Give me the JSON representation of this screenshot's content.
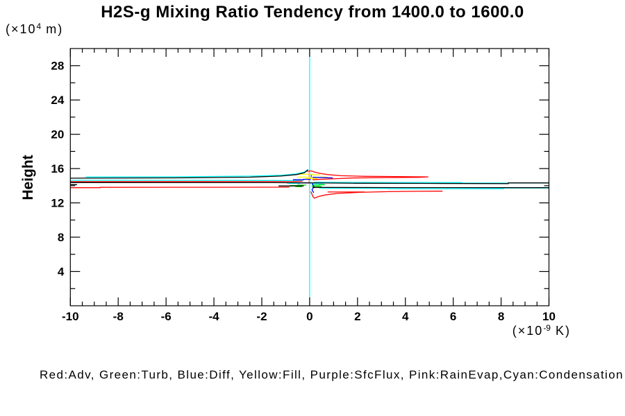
{
  "title": "H2S-g Mixing Ratio Tendency from 1400.0 to 1600.0",
  "y_axis_title": "Height",
  "y_axis_unit": {
    "prefix": "(×10",
    "sup": "4",
    "suffix": " m)"
  },
  "x_axis_unit": {
    "prefix": "(×10",
    "sup": "-9",
    "suffix": " K)"
  },
  "legend_text": "Red:Adv, Green:Turb, Blue:Diff, Yellow:Fill, Purple:SfcFlux, Pink:RainEvap,Cyan:Condensation",
  "colors": {
    "adv": "#ff0000",
    "turb": "#00dd00",
    "diff": "#0000ff",
    "fill": "#ffff00",
    "sfcflux": "#9b00ff",
    "rainevap": "#ff9c9c",
    "condensation": "#00ffff",
    "black": "#000000"
  },
  "chart_data": {
    "type": "line",
    "title": "H2S-g Mixing Ratio Tendency from 1400.0 to 1600.0",
    "xlabel": "(×10^-9 K)",
    "ylabel": "Height (×10^4 m)",
    "xlim": [
      -10,
      10
    ],
    "ylim": [
      0,
      30
    ],
    "x_major_ticks": [
      -10,
      -8,
      -6,
      -4,
      -2,
      0,
      2,
      4,
      6,
      8,
      10
    ],
    "x_minor_step": 0.5,
    "y_major_ticks": [
      4,
      8,
      12,
      16,
      20,
      24,
      28
    ],
    "y_minor_step": 2,
    "grid": false,
    "frame": true,
    "note": "x = tendency value, y = height; each series is a vertical profile, values ~0 everywhere except the 12.5-16 height band",
    "series": [
      {
        "name": "Condensation",
        "color": "#00ffff",
        "strokes": [
          [
            [
              0,
              0
            ],
            [
              0,
              30
            ]
          ],
          [
            [
              -9.35,
              15.02
            ],
            [
              -5,
              15.06
            ],
            [
              -2.5,
              15.12
            ],
            [
              -1.2,
              15.22
            ],
            [
              -0.55,
              15.38
            ],
            [
              -0.22,
              15.6
            ],
            [
              -0.06,
              15.92
            ]
          ],
          [
            [
              -10,
              14.64
            ],
            [
              -3,
              14.62
            ],
            [
              -0.7,
              14.6
            ],
            [
              -0.28,
              14.56
            ]
          ],
          [
            [
              -0.95,
              14.28
            ],
            [
              -0.4,
              14.26
            ]
          ],
          [
            [
              0.12,
              14.21
            ],
            [
              0.6,
              14.19
            ]
          ],
          [
            [
              0.18,
              14.4
            ],
            [
              2.5,
              14.38
            ],
            [
              6.35,
              14.37
            ],
            [
              6.35,
              14.32
            ],
            [
              8.3,
              14.31
            ],
            [
              10,
              14.31
            ]
          ],
          [
            [
              0.4,
              13.73
            ],
            [
              1.1,
              13.71
            ],
            [
              3.3,
              13.7
            ],
            [
              3.3,
              13.66
            ],
            [
              8.1,
              13.65
            ],
            [
              8.1,
              13.73
            ],
            [
              10,
              13.73
            ]
          ]
        ]
      },
      {
        "name": "SfcFlux",
        "color": "#9b00ff",
        "strokes": [
          [
            [
              0.07,
              14.82
            ],
            [
              0.07,
              15.28
            ]
          ]
        ]
      },
      {
        "name": "RainEvap",
        "color": "#ff9c9c",
        "strokes": [
          [
            [
              -0.03,
              14.36
            ],
            [
              -0.03,
              15.56
            ]
          ]
        ]
      },
      {
        "name": "Fill",
        "color": "#ffff00",
        "strokes": [
          [
            [
              -0.46,
              15.33
            ],
            [
              0.1,
              15.33
            ],
            [
              0.1,
              15.27
            ],
            [
              0.44,
              15.27
            ]
          ],
          [
            [
              -0.52,
              15.0
            ],
            [
              -0.15,
              15.0
            ],
            [
              -0.15,
              14.96
            ],
            [
              0.42,
              14.96
            ],
            [
              0.42,
              15.01
            ],
            [
              0.74,
              15.01
            ]
          ],
          [
            [
              -0.2,
              14.82
            ],
            [
              0.32,
              14.82
            ]
          ]
        ]
      },
      {
        "name": "Turb",
        "color": "#00dd00",
        "strokes": [
          [
            [
              -0.84,
              14.02
            ],
            [
              -0.5,
              14.02
            ],
            [
              -0.5,
              14.07
            ],
            [
              -0.14,
              14.07
            ]
          ],
          [
            [
              0.1,
              14.07
            ],
            [
              0.4,
              14.07
            ],
            [
              0.4,
              14.11
            ],
            [
              0.64,
              14.11
            ]
          ],
          [
            [
              0.08,
              13.93
            ],
            [
              0.5,
              13.93
            ]
          ],
          [
            [
              -0.6,
              13.89
            ],
            [
              -0.32,
              13.89
            ]
          ]
        ]
      },
      {
        "name": "Diff",
        "color": "#0000ff",
        "strokes": [
          [
            [
              -0.7,
              14.7
            ],
            [
              -0.25,
              14.7
            ],
            [
              -0.25,
              14.75
            ],
            [
              0.05,
              14.75
            ]
          ],
          [
            [
              0.12,
              14.98
            ],
            [
              0.6,
              14.94
            ],
            [
              0.97,
              14.9
            ]
          ],
          [
            [
              -0.5,
              14.33
            ],
            [
              0.06,
              14.33
            ]
          ],
          [
            [
              0.1,
              14.28
            ],
            [
              0.18,
              13.9
            ],
            [
              0.1,
              13.52
            ],
            [
              0.17,
              13.18
            ]
          ]
        ]
      },
      {
        "name": "black",
        "color": "#000000",
        "strokes": [
          [
            [
              -10,
              14.88
            ],
            [
              -5,
              14.93
            ],
            [
              -2.5,
              15.0
            ],
            [
              -1.2,
              15.13
            ],
            [
              -0.55,
              15.3
            ],
            [
              -0.22,
              15.52
            ],
            [
              -0.07,
              15.85
            ]
          ],
          [
            [
              -10,
              14.37
            ],
            [
              -1.5,
              14.36
            ],
            [
              0.6,
              14.32
            ],
            [
              1.9,
              14.29
            ],
            [
              5,
              14.27
            ],
            [
              8.3,
              14.25
            ],
            [
              8.3,
              14.33
            ],
            [
              10,
              14.33
            ]
          ],
          [
            [
              -10,
              14.13
            ],
            [
              -9.72,
              14.13
            ]
          ],
          [
            [
              -1.3,
              13.97
            ],
            [
              -0.25,
              13.97
            ]
          ],
          [
            [
              0.12,
              13.8
            ],
            [
              4,
              13.78
            ],
            [
              8.1,
              13.77
            ],
            [
              10,
              13.77
            ]
          ]
        ]
      },
      {
        "name": "Adv",
        "color": "#ff0000",
        "strokes": [
          [
            [
              -10,
              14.48
            ],
            [
              -5,
              14.49
            ],
            [
              -0.7,
              14.5
            ],
            [
              -0.3,
              14.53
            ]
          ],
          [
            [
              -10,
              13.77
            ],
            [
              -8.75,
              13.77
            ],
            [
              -8.75,
              13.81
            ],
            [
              -4,
              13.82
            ],
            [
              -0.85,
              13.83
            ]
          ],
          [
            [
              -0.12,
              15.68
            ],
            [
              0.07,
              15.73
            ],
            [
              0.2,
              15.6
            ],
            [
              0.4,
              15.45
            ],
            [
              0.75,
              15.3
            ],
            [
              1.3,
              15.17
            ],
            [
              2.3,
              15.1
            ],
            [
              3.6,
              15.07
            ],
            [
              4.96,
              15.03
            ],
            [
              4.6,
              14.98
            ],
            [
              3.2,
              14.95
            ],
            [
              1.8,
              14.9
            ],
            [
              0.9,
              14.8
            ],
            [
              0.4,
              14.74
            ],
            [
              0.12,
              14.7
            ]
          ],
          [
            [
              0.05,
              13.33
            ],
            [
              0.1,
              13.0
            ],
            [
              0.14,
              12.72
            ],
            [
              0.2,
              12.56
            ],
            [
              0.38,
              12.74
            ],
            [
              0.65,
              12.92
            ],
            [
              1.15,
              13.1
            ],
            [
              2.1,
              13.23
            ],
            [
              3.3,
              13.31
            ],
            [
              4.6,
              13.35
            ],
            [
              5.55,
              13.37
            ]
          ],
          [
            [
              0.75,
              13.27
            ],
            [
              2.3,
              13.27
            ]
          ]
        ]
      }
    ]
  }
}
